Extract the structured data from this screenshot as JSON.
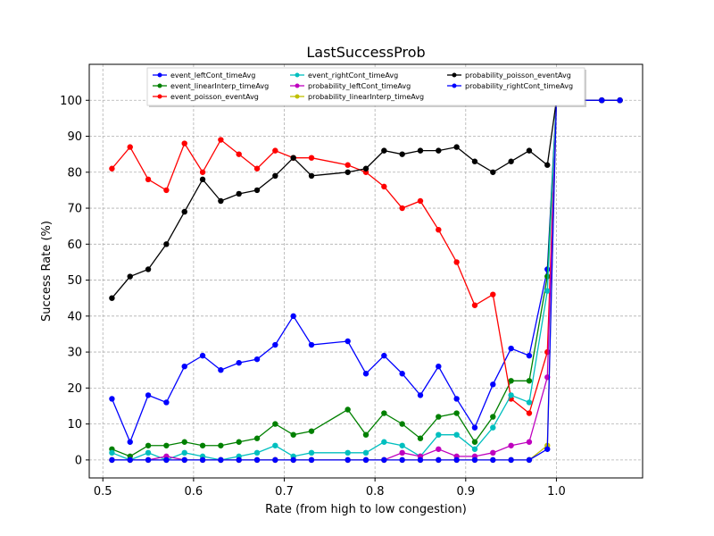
{
  "chart_data": {
    "type": "line",
    "title": "LastSuccessProb",
    "xlabel": "Rate (from high to low congestion)",
    "ylabel": "Success Rate (%)",
    "xlim": [
      0.485,
      1.095
    ],
    "ylim": [
      -5,
      110
    ],
    "xticks": [
      0.5,
      0.6,
      0.7,
      0.8,
      0.9,
      1.0
    ],
    "xtick_labels": [
      "0.5",
      "0.6",
      "0.7",
      "0.8",
      "0.9",
      "1.0"
    ],
    "yticks": [
      0,
      10,
      20,
      30,
      40,
      50,
      60,
      70,
      80,
      90,
      100
    ],
    "ytick_labels": [
      "0",
      "10",
      "20",
      "30",
      "40",
      "50",
      "60",
      "70",
      "80",
      "90",
      "100"
    ],
    "grid": true,
    "legend_location": "top",
    "x": [
      0.51,
      0.53,
      0.55,
      0.57,
      0.59,
      0.61,
      0.63,
      0.65,
      0.67,
      0.69,
      0.71,
      0.73,
      0.77,
      0.79,
      0.81,
      0.83,
      0.85,
      0.87,
      0.89,
      0.91,
      0.93,
      0.95,
      0.97,
      0.99,
      1.0,
      1.05,
      1.07
    ],
    "series": [
      {
        "name": "event_leftCont_timeAvg",
        "color": "#0000ff",
        "values": [
          17,
          5,
          18,
          16,
          26,
          29,
          25,
          27,
          28,
          32,
          40,
          32,
          33,
          24,
          29,
          24,
          18,
          26,
          17,
          9,
          21,
          31,
          29,
          53,
          100,
          100,
          100
        ]
      },
      {
        "name": "event_linearInterp_timeAvg",
        "color": "#008000",
        "values": [
          3,
          1,
          4,
          4,
          5,
          4,
          4,
          5,
          6,
          10,
          7,
          8,
          14,
          7,
          13,
          10,
          6,
          12,
          13,
          5,
          12,
          22,
          22,
          51,
          100,
          100,
          100
        ]
      },
      {
        "name": "event_poisson_eventAvg",
        "color": "#ff0000",
        "values": [
          81,
          87,
          78,
          75,
          88,
          80,
          89,
          85,
          81,
          86,
          84,
          84,
          82,
          80,
          76,
          70,
          72,
          64,
          55,
          43,
          46,
          17,
          13,
          30,
          100,
          100,
          100
        ]
      },
      {
        "name": "event_rightCont_timeAvg",
        "color": "#00bfbf",
        "values": [
          2,
          0,
          2,
          0,
          2,
          1,
          0,
          1,
          2,
          4,
          1,
          2,
          2,
          2,
          5,
          4,
          1,
          7,
          7,
          3,
          9,
          18,
          16,
          47,
          100,
          100,
          100
        ]
      },
      {
        "name": "probability_leftCont_timeAvg",
        "color": "#bf00bf",
        "values": [
          0,
          0,
          0,
          1,
          0,
          0,
          0,
          0,
          0,
          0,
          0,
          0,
          0,
          0,
          0,
          2,
          1,
          3,
          1,
          1,
          2,
          4,
          5,
          23,
          100,
          100,
          100
        ]
      },
      {
        "name": "probability_linearInterp_timeAvg",
        "color": "#bfbf00",
        "values": [
          0,
          0,
          0,
          0,
          0,
          0,
          0,
          0,
          0,
          0,
          0,
          0,
          0,
          0,
          0,
          0,
          0,
          0,
          0,
          0,
          0,
          0,
          0,
          4,
          100,
          100,
          100
        ]
      },
      {
        "name": "probability_poisson_eventAvg",
        "color": "#000000",
        "values": [
          45,
          51,
          53,
          60,
          69,
          78,
          72,
          74,
          75,
          79,
          84,
          79,
          80,
          81,
          86,
          85,
          86,
          86,
          87,
          83,
          80,
          83,
          86,
          82,
          100,
          100,
          100
        ]
      },
      {
        "name": "probability_rightCont_timeAvg",
        "color": "#0000ff",
        "values": [
          0,
          0,
          0,
          0,
          0,
          0,
          0,
          0,
          0,
          0,
          0,
          0,
          0,
          0,
          0,
          0,
          0,
          0,
          0,
          0,
          0,
          0,
          0,
          3,
          100,
          100,
          100
        ]
      }
    ]
  }
}
